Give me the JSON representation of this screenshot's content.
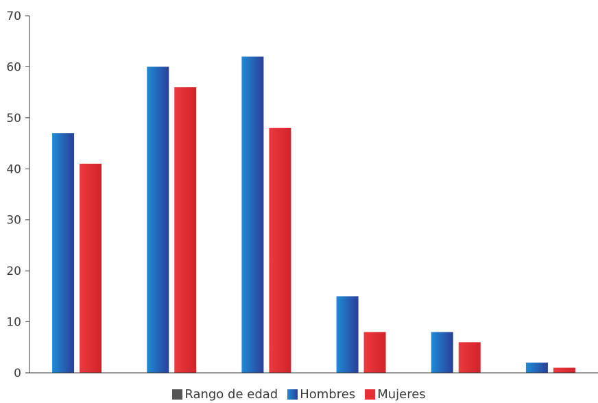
{
  "chart_data": {
    "type": "bar",
    "categories": [
      "",
      "",
      "",
      "",
      "",
      ""
    ],
    "series": [
      {
        "name": "Hombres",
        "values": [
          47,
          60,
          62,
          15,
          8,
          2
        ],
        "color": "#1a72c4"
      },
      {
        "name": "Mujeres",
        "values": [
          41,
          56,
          48,
          8,
          6,
          1
        ],
        "color": "#e63035"
      }
    ],
    "legend": [
      {
        "label": "Rango de edad",
        "color": "#555555"
      },
      {
        "label": "Hombres",
        "color": "#1a72c4"
      },
      {
        "label": "Mujeres",
        "color": "#e63035"
      }
    ],
    "ylim": [
      0,
      70
    ],
    "yticks": [
      0,
      10,
      20,
      30,
      40,
      50,
      60,
      70
    ],
    "grid": false,
    "legend_position": "bottom",
    "title": "",
    "xlabel": "",
    "ylabel": ""
  }
}
